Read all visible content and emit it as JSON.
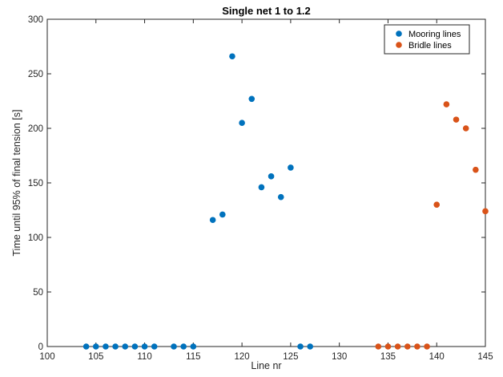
{
  "chart_data": {
    "type": "scatter",
    "title": "Single net 1 to 1.2",
    "xlabel": "Line nr",
    "ylabel": "Time until 95% of final tension [s]",
    "xlim": [
      100,
      145
    ],
    "ylim": [
      0,
      300
    ],
    "xticks": [
      100,
      105,
      110,
      115,
      120,
      125,
      130,
      135,
      140,
      145
    ],
    "yticks": [
      0,
      50,
      100,
      150,
      200,
      250,
      300
    ],
    "grid": false,
    "legend_position": "top-right",
    "series": [
      {
        "name": "Mooring lines",
        "color": "#0072BD",
        "points": [
          [
            104,
            0
          ],
          [
            105,
            0
          ],
          [
            106,
            0
          ],
          [
            107,
            0
          ],
          [
            108,
            0
          ],
          [
            109,
            0
          ],
          [
            110,
            0
          ],
          [
            111,
            0
          ],
          [
            113,
            0
          ],
          [
            114,
            0
          ],
          [
            115,
            0
          ],
          [
            117,
            116
          ],
          [
            118,
            121
          ],
          [
            119,
            266
          ],
          [
            120,
            205
          ],
          [
            121,
            227
          ],
          [
            122,
            146
          ],
          [
            123,
            156
          ],
          [
            124,
            137
          ],
          [
            125,
            164
          ],
          [
            126,
            0
          ],
          [
            127,
            0
          ]
        ]
      },
      {
        "name": "Bridle lines",
        "color": "#D95319",
        "points": [
          [
            134,
            0
          ],
          [
            135,
            0
          ],
          [
            136,
            0
          ],
          [
            137,
            0
          ],
          [
            138,
            0
          ],
          [
            139,
            0
          ],
          [
            140,
            130
          ],
          [
            141,
            222
          ],
          [
            142,
            208
          ],
          [
            143,
            200
          ],
          [
            144,
            162
          ],
          [
            145,
            124
          ]
        ]
      }
    ]
  }
}
